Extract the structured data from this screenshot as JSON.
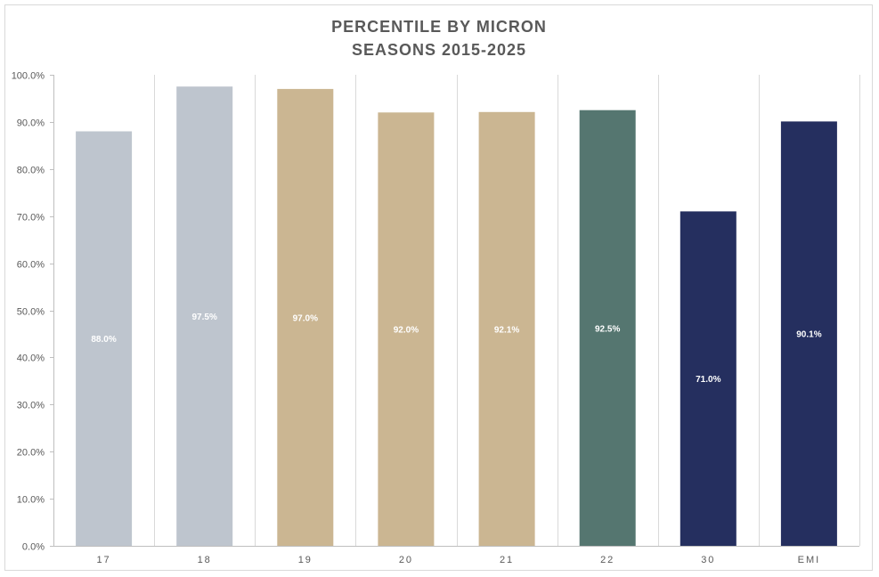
{
  "chart_data": {
    "type": "bar",
    "title": "PERCENTILE BY MICRON",
    "subtitle": "SEASONS 2015-2025",
    "categories": [
      "17",
      "18",
      "19",
      "20",
      "21",
      "22",
      "30",
      "EMI"
    ],
    "values": [
      88.0,
      97.5,
      97.0,
      92.0,
      92.1,
      92.5,
      71.0,
      90.1
    ],
    "data_labels": [
      "88.0%",
      "97.5%",
      "97.0%",
      "92.0%",
      "92.1%",
      "92.5%",
      "71.0%",
      "90.1%"
    ],
    "colors": [
      "#bec5ce",
      "#bec5ce",
      "#cbb692",
      "#cbb692",
      "#cbb692",
      "#557670",
      "#252f5f",
      "#252f5f"
    ],
    "ylim": [
      0,
      100
    ],
    "yticks": [
      0,
      10,
      20,
      30,
      40,
      50,
      60,
      70,
      80,
      90,
      100
    ],
    "ytick_labels": [
      "0.0%",
      "10.0%",
      "20.0%",
      "30.0%",
      "40.0%",
      "50.0%",
      "60.0%",
      "70.0%",
      "80.0%",
      "90.0%",
      "100.0%"
    ],
    "xlabel": "",
    "ylabel": "",
    "grid": "vertical category separators",
    "legend": "none"
  }
}
